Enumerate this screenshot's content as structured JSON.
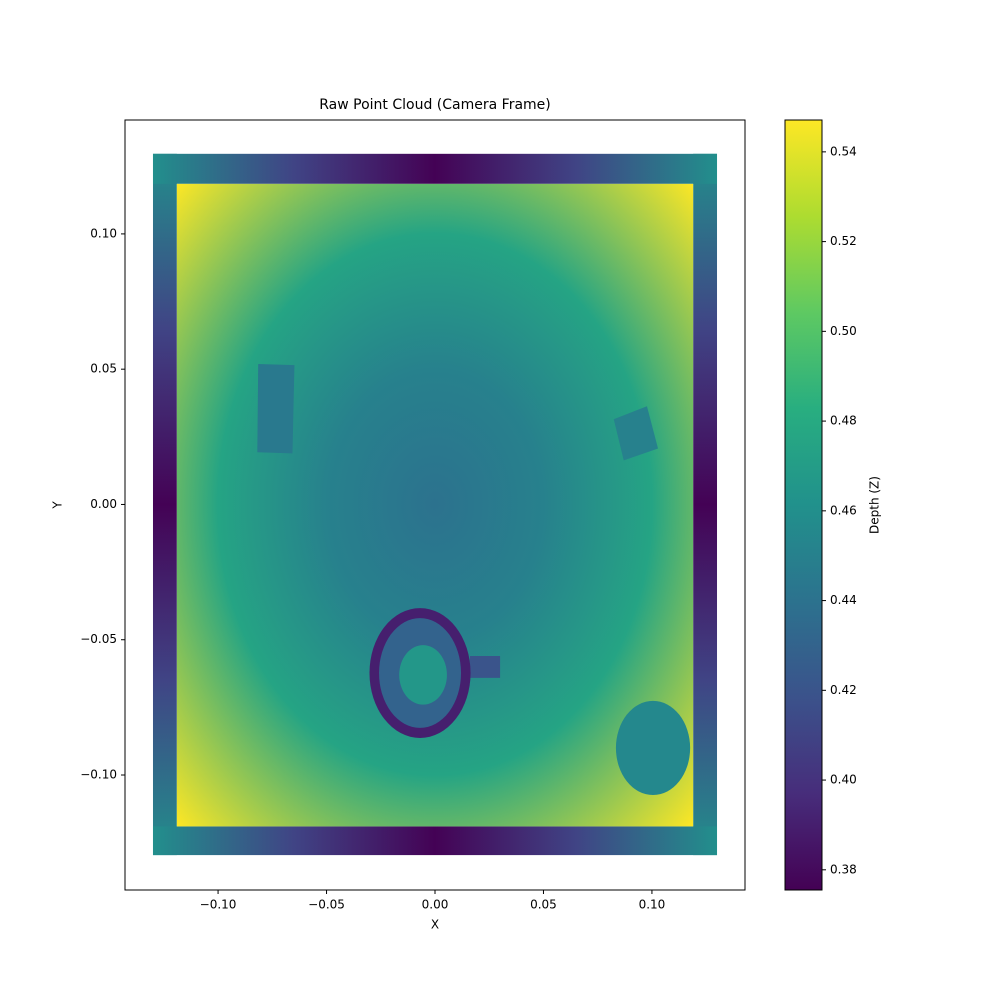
{
  "chart_data": {
    "type": "scatter",
    "title": "Raw Point Cloud (Camera Frame)",
    "xlabel": "X",
    "ylabel": "Y",
    "xlim": [
      -0.1429,
      0.1429
    ],
    "ylim": [
      -0.1425,
      0.1421
    ],
    "xticks": [
      {
        "value": -0.1,
        "label": "−0.10"
      },
      {
        "value": -0.05,
        "label": "−0.05"
      },
      {
        "value": 0,
        "label": "0.00"
      },
      0.05,
      {
        "value": 0.1,
        "label": "0.10"
      }
    ],
    "yticks": [
      {
        "value": -0.1,
        "label": "−0.10"
      },
      {
        "value": -0.05,
        "label": "−0.05"
      },
      {
        "value": 0,
        "label": "0.00"
      },
      0.05,
      {
        "value": 0.1,
        "label": "0.10"
      }
    ],
    "colorbar": {
      "label": "Depth (Z)",
      "lim": [
        0.3755,
        0.5471
      ],
      "ticks": [
        0.38,
        {
          "value": 0.4,
          "label": "0.40"
        },
        0.42,
        0.44,
        0.46,
        0.48,
        {
          "value": 0.5,
          "label": "0.50"
        },
        0.52,
        0.54
      ]
    },
    "colormap": [
      "#440154",
      "#472d7b",
      "#3b528b",
      "#2c728e",
      "#21918c",
      "#28ae80",
      "#5ec962",
      "#addc30",
      "#fde725"
    ],
    "frame": {
      "xlim": [
        -0.13,
        0.13
      ],
      "ylim": [
        -0.1296,
        0.1296
      ],
      "offsets": [
        0,
        0.065,
        0.13
      ],
      "z": [
        0.376,
        0.41,
        0.46
      ]
    },
    "table": {
      "xlim": [
        -0.119,
        0.119
      ],
      "ylim": [
        -0.119,
        0.1185
      ],
      "radii": [
        0,
        0.05,
        0.1,
        0.168
      ],
      "z": [
        0.44,
        0.45,
        0.475,
        0.547
      ]
    },
    "objects": [
      {
        "shape": "polygon",
        "x": [
          -0.0815,
          -0.0648,
          -0.0657,
          -0.0819
        ],
        "y": [
          0.0519,
          0.0515,
          0.0189,
          0.0193
        ],
        "z": 0.445
      },
      {
        "shape": "polygon",
        "x": [
          0.0824,
          0.0977,
          0.1028,
          0.087
        ],
        "y": [
          0.0315,
          0.0363,
          0.0207,
          0.0163
        ],
        "z": 0.45
      },
      {
        "shape": "polygon",
        "x": [
          0.0161,
          0.03,
          0.03,
          0.0161
        ],
        "y": [
          -0.056,
          -0.056,
          -0.0641,
          -0.0641
        ],
        "z": 0.42
      },
      {
        "shape": "ellipse",
        "cx": -0.0069,
        "cy": -0.0623,
        "rx": 0.0233,
        "ry": 0.024,
        "z": 0.39
      },
      {
        "shape": "ellipse",
        "cx": -0.0069,
        "cy": -0.0623,
        "rx": 0.0189,
        "ry": 0.0203,
        "z": 0.43
      },
      {
        "shape": "ellipse",
        "cx": -0.0055,
        "cy": -0.063,
        "rx": 0.011,
        "ry": 0.011,
        "z": 0.466
      },
      {
        "shape": "ellipse",
        "cx": 0.1005,
        "cy": -0.09,
        "rx": 0.0171,
        "ry": 0.0174,
        "z": 0.455
      }
    ]
  }
}
